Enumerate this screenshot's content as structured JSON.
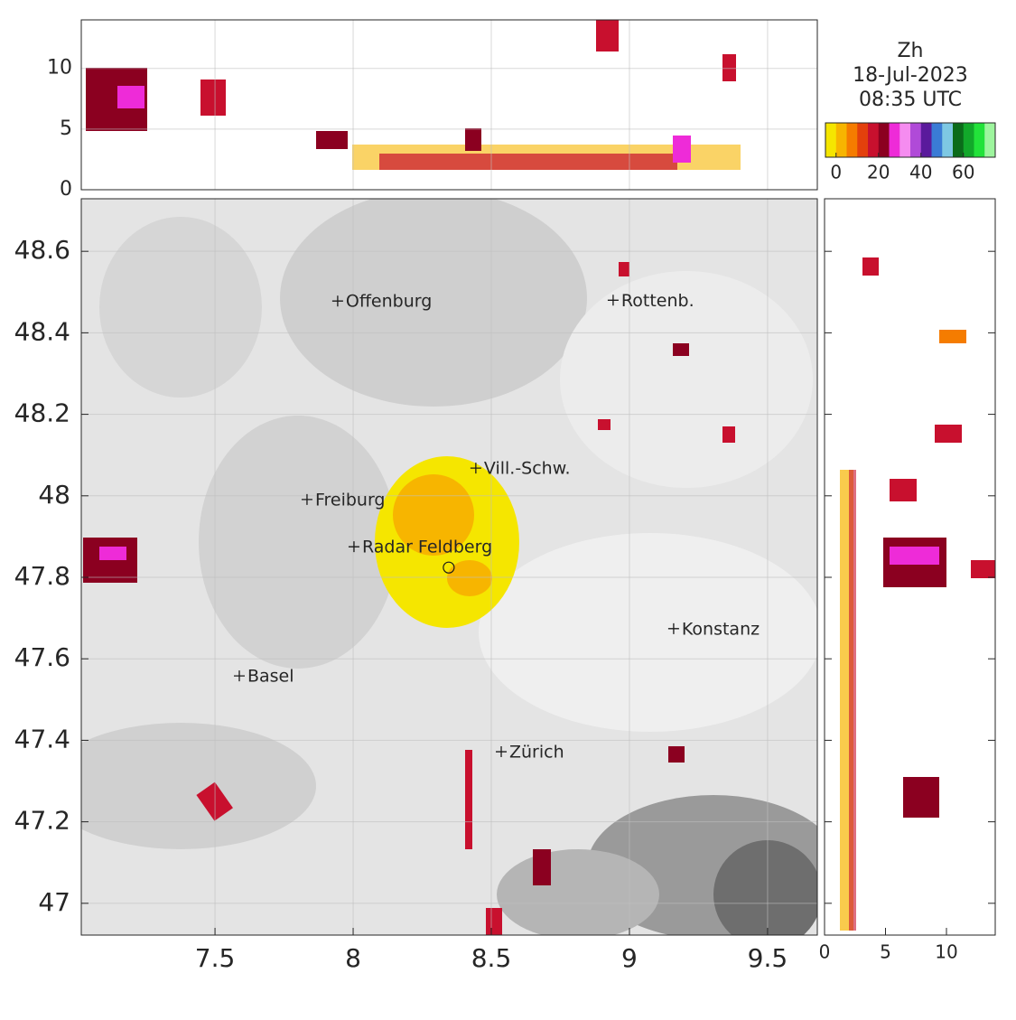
{
  "title_lines": [
    "Zh",
    "18-Jul-2023",
    "08:35 UTC"
  ],
  "map": {
    "xlim": [
      7.016,
      9.68
    ],
    "ylim": [
      46.922,
      48.729
    ],
    "xticks": [
      7.5,
      8,
      8.5,
      9,
      9.5
    ],
    "yticks": [
      47,
      47.2,
      47.4,
      47.6,
      47.8,
      48,
      48.2,
      48.4,
      48.6
    ],
    "cities": [
      {
        "name": "Offenburg",
        "lon": 7.944,
        "lat": 48.478
      },
      {
        "name": "Rottenb.",
        "lon": 8.941,
        "lat": 48.48
      },
      {
        "name": "Vill.-Schw.",
        "lon": 8.444,
        "lat": 48.068
      },
      {
        "name": "Freiburg",
        "lon": 7.833,
        "lat": 47.991
      },
      {
        "name": "Radar Feldberg",
        "lon": 8.003,
        "lat": 47.875
      },
      {
        "name": "Konstanz",
        "lon": 9.16,
        "lat": 47.674
      },
      {
        "name": "Basel",
        "lon": 7.588,
        "lat": 47.558
      },
      {
        "name": "Zürich",
        "lon": 8.536,
        "lat": 47.372
      }
    ],
    "radar": {
      "lon": 8.346,
      "lat": 47.824
    }
  },
  "top_panel": {
    "ylim": [
      0,
      14
    ],
    "yticks": [
      0,
      5,
      10
    ]
  },
  "side_panel": {
    "xlim": [
      0,
      14
    ],
    "xticks": [
      0,
      5,
      10
    ]
  },
  "colorbar": {
    "lim": [
      -5,
      75
    ],
    "ticks": [
      0,
      20,
      40,
      60
    ],
    "colors": [
      "#f5e600",
      "#f7b500",
      "#f57c00",
      "#e3400c",
      "#c8102e",
      "#8b0020",
      "#ee2bd8",
      "#f58cf0",
      "#b04ad8",
      "#5a1a9c",
      "#3a7bd5",
      "#7ec8e3",
      "#0b6b1a",
      "#12a82a",
      "#22e23a",
      "#9ef59e"
    ]
  }
}
